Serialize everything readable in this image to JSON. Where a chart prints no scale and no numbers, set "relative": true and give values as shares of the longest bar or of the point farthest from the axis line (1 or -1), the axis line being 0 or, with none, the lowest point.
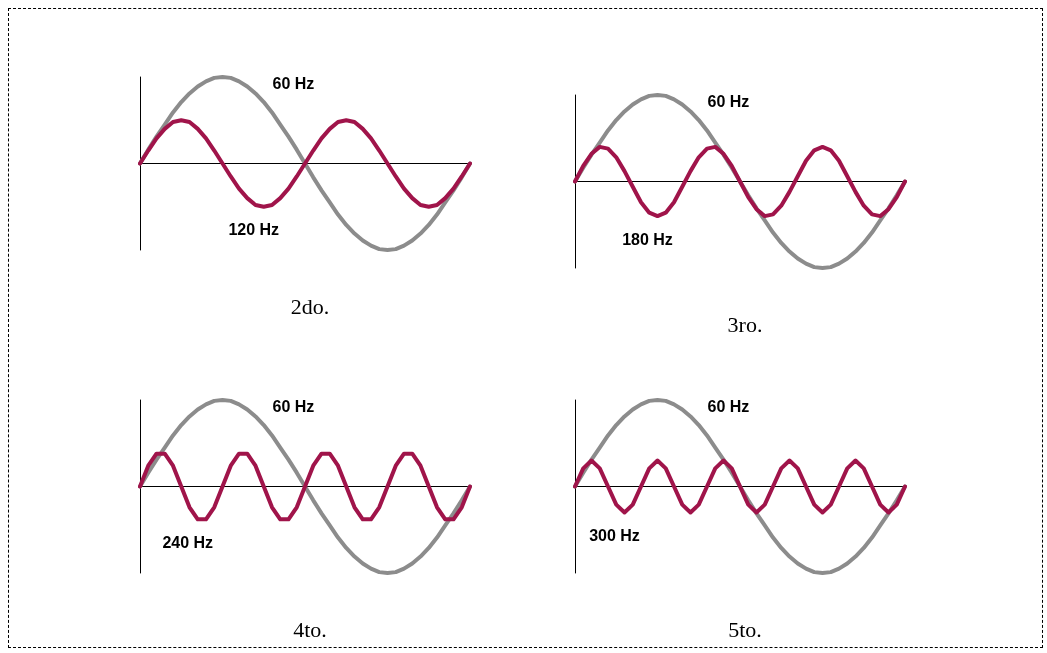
{
  "chart_data": [
    {
      "type": "line",
      "subtitle": "2do.",
      "relative": true,
      "marker": "none",
      "legend": false,
      "categories": [
        null,
        null,
        null,
        null,
        null,
        null,
        null,
        null,
        null,
        null,
        null,
        null,
        null,
        null,
        null,
        null,
        null,
        null,
        null,
        null,
        null,
        null,
        null,
        null,
        null,
        null,
        null,
        null,
        null,
        null,
        null,
        null,
        null,
        null,
        null,
        null,
        null,
        null,
        null,
        null,
        null
      ],
      "series": [
        {
          "name": "60 Hz",
          "color": "#8c8c8c",
          "values": [
            0,
            0.16,
            0.31,
            0.45,
            0.59,
            0.71,
            0.81,
            0.89,
            0.95,
            0.99,
            1,
            0.99,
            0.95,
            0.89,
            0.81,
            0.71,
            0.59,
            0.45,
            0.31,
            0.16,
            0,
            -0.16,
            -0.31,
            -0.45,
            -0.59,
            -0.71,
            -0.81,
            -0.89,
            -0.95,
            -0.99,
            -1,
            -0.99,
            -0.95,
            -0.89,
            -0.81,
            -0.71,
            -0.59,
            -0.45,
            -0.31,
            -0.16,
            0
          ]
        },
        {
          "name": "120 Hz",
          "color": "#a0144a",
          "values": [
            0,
            0.15,
            0.29,
            0.4,
            0.48,
            0.5,
            0.48,
            0.4,
            0.29,
            0.15,
            0,
            -0.15,
            -0.29,
            -0.4,
            -0.48,
            -0.5,
            -0.48,
            -0.4,
            -0.29,
            -0.15,
            0,
            0.15,
            0.29,
            0.4,
            0.48,
            0.5,
            0.48,
            0.4,
            0.29,
            0.15,
            0,
            -0.15,
            -0.29,
            -0.4,
            -0.48,
            -0.5,
            -0.48,
            -0.4,
            -0.29,
            -0.15,
            0
          ]
        }
      ]
    },
    {
      "type": "line",
      "subtitle": "3ro.",
      "relative": true,
      "marker": "none",
      "legend": false,
      "categories": [
        null,
        null,
        null,
        null,
        null,
        null,
        null,
        null,
        null,
        null,
        null,
        null,
        null,
        null,
        null,
        null,
        null,
        null,
        null,
        null,
        null,
        null,
        null,
        null,
        null,
        null,
        null,
        null,
        null,
        null,
        null,
        null,
        null,
        null,
        null,
        null,
        null,
        null,
        null,
        null,
        null
      ],
      "series": [
        {
          "name": "60 Hz",
          "color": "#8c8c8c",
          "values": [
            0,
            0.16,
            0.31,
            0.45,
            0.59,
            0.71,
            0.81,
            0.89,
            0.95,
            0.99,
            1,
            0.99,
            0.95,
            0.89,
            0.81,
            0.71,
            0.59,
            0.45,
            0.31,
            0.16,
            0,
            -0.16,
            -0.31,
            -0.45,
            -0.59,
            -0.71,
            -0.81,
            -0.89,
            -0.95,
            -0.99,
            -1,
            -0.99,
            -0.95,
            -0.89,
            -0.81,
            -0.71,
            -0.59,
            -0.45,
            -0.31,
            -0.16,
            0
          ]
        },
        {
          "name": "180 Hz",
          "color": "#a0144a",
          "values": [
            0,
            0.18,
            0.32,
            0.4,
            0.38,
            0.28,
            0.12,
            -0.06,
            -0.24,
            -0.36,
            -0.4,
            -0.36,
            -0.24,
            -0.06,
            0.12,
            0.28,
            0.38,
            0.4,
            0.32,
            0.18,
            0,
            -0.18,
            -0.32,
            -0.4,
            -0.38,
            -0.28,
            -0.12,
            0.06,
            0.24,
            0.36,
            0.4,
            0.36,
            0.24,
            0.06,
            -0.12,
            -0.28,
            -0.38,
            -0.4,
            -0.32,
            -0.18,
            0
          ]
        }
      ]
    },
    {
      "type": "line",
      "subtitle": "4to.",
      "relative": true,
      "marker": "none",
      "legend": false,
      "categories": [
        null,
        null,
        null,
        null,
        null,
        null,
        null,
        null,
        null,
        null,
        null,
        null,
        null,
        null,
        null,
        null,
        null,
        null,
        null,
        null,
        null,
        null,
        null,
        null,
        null,
        null,
        null,
        null,
        null,
        null,
        null,
        null,
        null,
        null,
        null,
        null,
        null,
        null,
        null,
        null,
        null
      ],
      "series": [
        {
          "name": "60 Hz",
          "color": "#8c8c8c",
          "values": [
            0,
            0.16,
            0.31,
            0.45,
            0.59,
            0.71,
            0.81,
            0.89,
            0.95,
            0.99,
            1,
            0.99,
            0.95,
            0.89,
            0.81,
            0.71,
            0.59,
            0.45,
            0.31,
            0.16,
            0,
            -0.16,
            -0.31,
            -0.45,
            -0.59,
            -0.71,
            -0.81,
            -0.89,
            -0.95,
            -0.99,
            -1,
            -0.99,
            -0.95,
            -0.89,
            -0.81,
            -0.71,
            -0.59,
            -0.45,
            -0.31,
            -0.16,
            0
          ]
        },
        {
          "name": "240 Hz",
          "color": "#a0144a",
          "values": [
            0,
            0.24,
            0.38,
            0.38,
            0.24,
            0,
            -0.24,
            -0.38,
            -0.38,
            -0.24,
            0,
            0.24,
            0.38,
            0.38,
            0.24,
            0,
            -0.24,
            -0.38,
            -0.38,
            -0.24,
            0,
            0.24,
            0.38,
            0.38,
            0.24,
            0,
            -0.24,
            -0.38,
            -0.38,
            -0.24,
            0,
            0.24,
            0.38,
            0.38,
            0.24,
            0,
            -0.24,
            -0.38,
            -0.38,
            -0.24,
            0
          ]
        }
      ]
    },
    {
      "type": "line",
      "subtitle": "5to.",
      "relative": true,
      "marker": "none",
      "legend": false,
      "categories": [
        null,
        null,
        null,
        null,
        null,
        null,
        null,
        null,
        null,
        null,
        null,
        null,
        null,
        null,
        null,
        null,
        null,
        null,
        null,
        null,
        null,
        null,
        null,
        null,
        null,
        null,
        null,
        null,
        null,
        null,
        null,
        null,
        null,
        null,
        null,
        null,
        null,
        null,
        null,
        null,
        null
      ],
      "series": [
        {
          "name": "60 Hz",
          "color": "#8c8c8c",
          "values": [
            0,
            0.16,
            0.31,
            0.45,
            0.59,
            0.71,
            0.81,
            0.89,
            0.95,
            0.99,
            1,
            0.99,
            0.95,
            0.89,
            0.81,
            0.71,
            0.59,
            0.45,
            0.31,
            0.16,
            0,
            -0.16,
            -0.31,
            -0.45,
            -0.59,
            -0.71,
            -0.81,
            -0.89,
            -0.95,
            -0.99,
            -1,
            -0.99,
            -0.95,
            -0.89,
            -0.81,
            -0.71,
            -0.59,
            -0.45,
            -0.31,
            -0.16,
            0
          ]
        },
        {
          "name": "300 Hz",
          "color": "#a0144a",
          "values": [
            0,
            0.21,
            0.3,
            0.21,
            0,
            -0.21,
            -0.3,
            -0.21,
            0,
            0.21,
            0.3,
            0.21,
            0,
            -0.21,
            -0.3,
            -0.21,
            0,
            0.21,
            0.3,
            0.21,
            0,
            -0.21,
            -0.3,
            -0.21,
            0,
            0.21,
            0.3,
            0.21,
            0,
            -0.21,
            -0.3,
            -0.21,
            0,
            0.21,
            0.3,
            0.21,
            0,
            -0.21,
            -0.3,
            -0.21,
            0
          ]
        }
      ]
    }
  ]
}
